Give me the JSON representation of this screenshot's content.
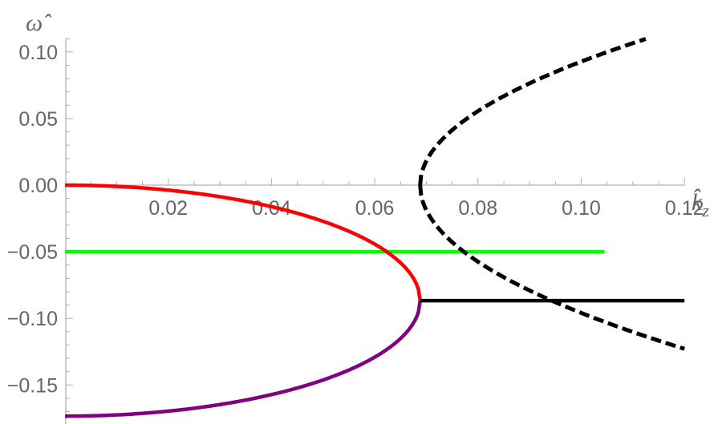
{
  "chart_data": {
    "type": "line",
    "title": "",
    "xlabel": "k̂_z",
    "ylabel": "ω̂",
    "xlim": [
      0,
      0.12
    ],
    "ylim": [
      -0.175,
      0.11
    ],
    "grid": false,
    "legend": null,
    "x_ticks": [
      0.02,
      0.04,
      0.06,
      0.08,
      0.1,
      0.12
    ],
    "x_tick_labels": [
      "0.02",
      "0.04",
      "0.06",
      "0.08",
      "0.10",
      "0.12"
    ],
    "y_ticks": [
      0.1,
      0.05,
      0.0,
      -0.05,
      -0.1,
      -0.15
    ],
    "y_tick_labels": [
      "0.10",
      "0.05",
      "0.00",
      "−0.05",
      "−0.10",
      "−0.15"
    ],
    "critical_kz": 0.0688,
    "branch_point_omega": -0.0867,
    "series": [
      {
        "name": "red branch",
        "color": "#ff0000",
        "style": "solid",
        "x": [
          0,
          0.01,
          0.02,
          0.03,
          0.04,
          0.05,
          0.055,
          0.06,
          0.0624,
          0.065,
          0.067,
          0.068,
          0.0688
        ],
        "y": [
          0.0,
          -0.0009,
          -0.0038,
          -0.0087,
          -0.0161,
          -0.0272,
          -0.0345,
          -0.0443,
          -0.05,
          -0.0583,
          -0.0668,
          -0.0735,
          -0.0867
        ]
      },
      {
        "name": "purple branch",
        "color": "#800080",
        "style": "solid",
        "x": [
          0,
          0.01,
          0.02,
          0.03,
          0.04,
          0.05,
          0.055,
          0.06,
          0.065,
          0.067,
          0.068,
          0.0688
        ],
        "y": [
          -0.1734,
          -0.1725,
          -0.1696,
          -0.1647,
          -0.1573,
          -0.1462,
          -0.1389,
          -0.1291,
          -0.1151,
          -0.1066,
          -0.0999,
          -0.0867
        ]
      },
      {
        "name": "green constant",
        "color": "#00ff00",
        "style": "solid",
        "x": [
          0,
          0.1045
        ],
        "y": [
          -0.05,
          -0.05
        ]
      },
      {
        "name": "black constant",
        "color": "#000000",
        "style": "solid",
        "x": [
          0.0688,
          0.12
        ],
        "y": [
          -0.0867,
          -0.0867
        ]
      },
      {
        "name": "dashed upper",
        "color": "#000000",
        "style": "dashed",
        "x": [
          0.0688,
          0.07,
          0.075,
          0.08,
          0.09,
          0.1,
          0.11,
          0.1125
        ],
        "y": [
          0.0,
          0.018,
          0.041,
          0.056,
          0.077,
          0.093,
          0.107,
          0.11
        ]
      },
      {
        "name": "dashed lower",
        "color": "#000000",
        "style": "dashed",
        "x": [
          0.0688,
          0.07,
          0.075,
          0.08,
          0.09,
          0.1,
          0.11,
          0.12
        ],
        "y": [
          0.0,
          -0.019,
          -0.043,
          -0.057,
          -0.079,
          -0.095,
          -0.11,
          -0.123
        ]
      }
    ]
  }
}
